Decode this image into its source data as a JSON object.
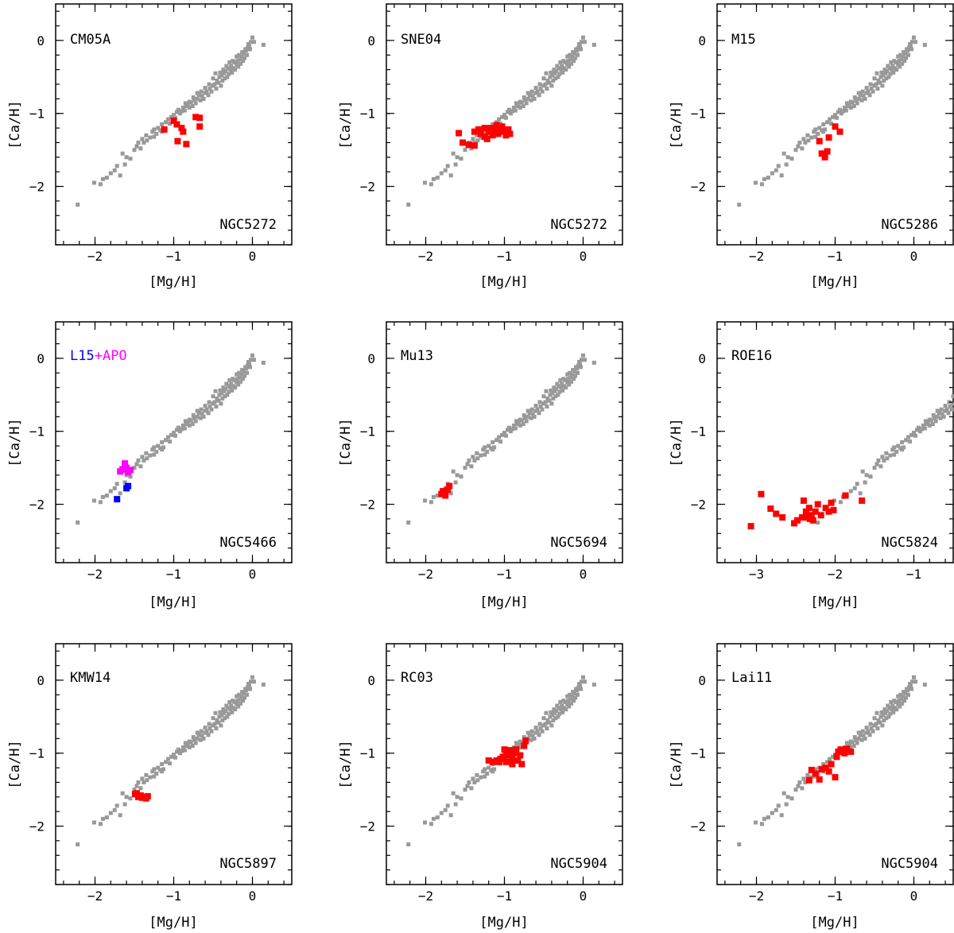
{
  "figure": {
    "background": "#ffffff"
  },
  "colors": {
    "field": "#999999",
    "highlight": "#ff0000",
    "L15": "#0000ff",
    "APO": "#ff00ff",
    "axis": "#000000"
  },
  "chart_data": [
    {
      "type": "scatter",
      "panel_label": "CM05A",
      "cluster": "NGC5272",
      "xlabel": "[Mg/H]",
      "ylabel": "[Ca/H]",
      "xlim": [
        -2.5,
        0.5
      ],
      "ylim": [
        -2.8,
        0.5
      ],
      "xticks": [
        -2,
        -1,
        0
      ],
      "yticks": [
        -2,
        -1,
        0
      ],
      "series": [
        {
          "name": "NGC5272",
          "color": "#ff0000",
          "points": [
            [
              -1.12,
              -1.22
            ],
            [
              -1.0,
              -1.1
            ],
            [
              -0.96,
              -1.15
            ],
            [
              -0.9,
              -1.2
            ],
            [
              -0.88,
              -1.25
            ],
            [
              -0.95,
              -1.38
            ],
            [
              -0.84,
              -1.42
            ],
            [
              -0.72,
              -1.05
            ],
            [
              -0.67,
              -1.06
            ],
            [
              -0.67,
              -1.18
            ]
          ]
        }
      ]
    },
    {
      "type": "scatter",
      "panel_label": "SNE04",
      "cluster": "NGC5272",
      "xlabel": "[Mg/H]",
      "ylabel": "[Ca/H]",
      "xlim": [
        -2.5,
        0.5
      ],
      "ylim": [
        -2.8,
        0.5
      ],
      "xticks": [
        -2,
        -1,
        0
      ],
      "yticks": [
        -2,
        -1,
        0
      ],
      "series": [
        {
          "name": "NGC5272",
          "color": "#ff0000",
          "points": [
            [
              -1.58,
              -1.27
            ],
            [
              -1.53,
              -1.4
            ],
            [
              -1.45,
              -1.43
            ],
            [
              -1.38,
              -1.44
            ],
            [
              -1.38,
              -1.25
            ],
            [
              -1.3,
              -1.28
            ],
            [
              -1.25,
              -1.2
            ],
            [
              -1.22,
              -1.35
            ],
            [
              -1.2,
              -1.25
            ],
            [
              -1.17,
              -1.2
            ],
            [
              -1.15,
              -1.3
            ],
            [
              -1.12,
              -1.22
            ],
            [
              -1.1,
              -1.16
            ],
            [
              -1.08,
              -1.28
            ],
            [
              -1.05,
              -1.22
            ],
            [
              -1.03,
              -1.18
            ],
            [
              -1.0,
              -1.25
            ],
            [
              -0.98,
              -1.3
            ],
            [
              -0.95,
              -1.22
            ],
            [
              -0.93,
              -1.28
            ],
            [
              -1.25,
              -1.32
            ],
            [
              -1.33,
              -1.22
            ]
          ]
        }
      ]
    },
    {
      "type": "scatter",
      "panel_label": "M15",
      "cluster": "NGC5286",
      "xlabel": "[Mg/H]",
      "ylabel": "[Ca/H]",
      "xlim": [
        -2.5,
        0.5
      ],
      "ylim": [
        -2.8,
        0.5
      ],
      "xticks": [
        -2,
        -1,
        0
      ],
      "yticks": [
        -2,
        -1,
        0
      ],
      "series": [
        {
          "name": "NGC5286",
          "color": "#ff0000",
          "points": [
            [
              -1.2,
              -1.38
            ],
            [
              -1.17,
              -1.55
            ],
            [
              -1.13,
              -1.6
            ],
            [
              -1.1,
              -1.52
            ],
            [
              -1.08,
              -1.33
            ],
            [
              -1.0,
              -1.18
            ],
            [
              -0.94,
              -1.25
            ]
          ]
        }
      ]
    },
    {
      "type": "scatter",
      "panel_label_parts": [
        "L15",
        "+APO"
      ],
      "cluster": "NGC5466",
      "xlabel": "[Mg/H]",
      "ylabel": "[Ca/H]",
      "xlim": [
        -2.5,
        0.5
      ],
      "ylim": [
        -2.8,
        0.5
      ],
      "xticks": [
        -2,
        -1,
        0
      ],
      "yticks": [
        -2,
        -1,
        0
      ],
      "series": [
        {
          "name": "L15",
          "color": "#0000ff",
          "points": [
            [
              -1.72,
              -1.93
            ],
            [
              -1.6,
              -1.78
            ],
            [
              -1.58,
              -1.75
            ]
          ]
        },
        {
          "name": "APO",
          "color": "#ff00ff",
          "points": [
            [
              -1.68,
              -1.55
            ],
            [
              -1.62,
              -1.44
            ],
            [
              -1.6,
              -1.5
            ],
            [
              -1.55,
              -1.53
            ],
            [
              -1.65,
              -1.52
            ],
            [
              -1.58,
              -1.56
            ]
          ]
        }
      ]
    },
    {
      "type": "scatter",
      "panel_label": "Mu13",
      "cluster": "NGC5694",
      "xlabel": "[Mg/H]",
      "ylabel": "[Ca/H]",
      "xlim": [
        -2.5,
        0.5
      ],
      "ylim": [
        -2.8,
        0.5
      ],
      "xticks": [
        -2,
        -1,
        0
      ],
      "yticks": [
        -2,
        -1,
        0
      ],
      "series": [
        {
          "name": "NGC5694",
          "color": "#ff0000",
          "points": [
            [
              -1.8,
              -1.86
            ],
            [
              -1.78,
              -1.82
            ],
            [
              -1.75,
              -1.88
            ],
            [
              -1.72,
              -1.8
            ],
            [
              -1.7,
              -1.75
            ],
            [
              -1.76,
              -1.84
            ]
          ]
        }
      ]
    },
    {
      "type": "scatter",
      "panel_label": "ROE16",
      "cluster": "NGC5824",
      "xlabel": "[Mg/H]",
      "ylabel": "[Ca/H]",
      "xlim": [
        -3.5,
        -0.5
      ],
      "ylim": [
        -2.8,
        0.5
      ],
      "xticks": [
        -3,
        -2,
        -1
      ],
      "yticks": [
        -2,
        -1,
        0
      ],
      "series": [
        {
          "name": "NGC5824",
          "color": "#ff0000",
          "points": [
            [
              -3.07,
              -2.3
            ],
            [
              -2.94,
              -1.86
            ],
            [
              -2.82,
              -2.06
            ],
            [
              -2.75,
              -2.13
            ],
            [
              -2.67,
              -2.18
            ],
            [
              -2.52,
              -2.26
            ],
            [
              -2.48,
              -2.22
            ],
            [
              -2.42,
              -2.18
            ],
            [
              -2.4,
              -1.95
            ],
            [
              -2.37,
              -2.1
            ],
            [
              -2.33,
              -2.05
            ],
            [
              -2.3,
              -2.15
            ],
            [
              -2.28,
              -2.22
            ],
            [
              -2.25,
              -2.1
            ],
            [
              -2.22,
              -2.0
            ],
            [
              -2.18,
              -2.15
            ],
            [
              -2.12,
              -2.05
            ],
            [
              -2.08,
              -2.1
            ],
            [
              -2.05,
              -1.98
            ],
            [
              -2.02,
              -2.08
            ],
            [
              -1.87,
              -1.88
            ],
            [
              -1.66,
              -1.95
            ],
            [
              -2.32,
              -2.2
            ],
            [
              -2.35,
              -2.18
            ]
          ]
        }
      ]
    },
    {
      "type": "scatter",
      "panel_label": "KMW14",
      "cluster": "NGC5897",
      "xlabel": "[Mg/H]",
      "ylabel": "[Ca/H]",
      "xlim": [
        -2.5,
        0.5
      ],
      "ylim": [
        -2.8,
        0.5
      ],
      "xticks": [
        -2,
        -1,
        0
      ],
      "yticks": [
        -2,
        -1,
        0
      ],
      "series": [
        {
          "name": "NGC5897",
          "color": "#ff0000",
          "points": [
            [
              -1.49,
              -1.56
            ],
            [
              -1.45,
              -1.6
            ],
            [
              -1.42,
              -1.58
            ],
            [
              -1.38,
              -1.6
            ],
            [
              -1.35,
              -1.62
            ],
            [
              -1.47,
              -1.55
            ],
            [
              -1.4,
              -1.61
            ],
            [
              -1.33,
              -1.59
            ]
          ]
        }
      ]
    },
    {
      "type": "scatter",
      "panel_label": "RC03",
      "cluster": "NGC5904",
      "xlabel": "[Mg/H]",
      "ylabel": "[Ca/H]",
      "xlim": [
        -2.5,
        0.5
      ],
      "ylim": [
        -2.8,
        0.5
      ],
      "xticks": [
        -2,
        -1,
        0
      ],
      "yticks": [
        -2,
        -1,
        0
      ],
      "series": [
        {
          "name": "NGC5904",
          "color": "#ff0000",
          "points": [
            [
              -1.2,
              -1.1
            ],
            [
              -1.15,
              -1.12
            ],
            [
              -1.1,
              -1.1
            ],
            [
              -1.05,
              -1.08
            ],
            [
              -1.02,
              -1.05
            ],
            [
              -1.0,
              -0.95
            ],
            [
              -0.98,
              -1.12
            ],
            [
              -0.95,
              -1.03
            ],
            [
              -0.93,
              -0.96
            ],
            [
              -0.9,
              -1.08
            ],
            [
              -0.88,
              -1.0
            ],
            [
              -0.85,
              -0.95
            ],
            [
              -0.83,
              -1.1
            ],
            [
              -0.8,
              -1.03
            ],
            [
              -0.78,
              -1.15
            ],
            [
              -0.75,
              -0.9
            ],
            [
              -0.73,
              -0.83
            ],
            [
              -0.9,
              -1.15
            ],
            [
              -0.97,
              -0.98
            ],
            [
              -1.07,
              -1.12
            ]
          ]
        }
      ]
    },
    {
      "type": "scatter",
      "panel_label": "Lai11",
      "cluster": "NGC5904",
      "xlabel": "[Mg/H]",
      "ylabel": "[Ca/H]",
      "xlim": [
        -2.5,
        0.5
      ],
      "ylim": [
        -2.8,
        0.5
      ],
      "xticks": [
        -2,
        -1,
        0
      ],
      "yticks": [
        -2,
        -1,
        0
      ],
      "series": [
        {
          "name": "NGC5904",
          "color": "#ff0000",
          "points": [
            [
              -1.33,
              -1.37
            ],
            [
              -1.3,
              -1.23
            ],
            [
              -1.25,
              -1.28
            ],
            [
              -1.2,
              -1.36
            ],
            [
              -1.17,
              -1.22
            ],
            [
              -1.12,
              -1.2
            ],
            [
              -1.08,
              -1.25
            ],
            [
              -1.05,
              -1.15
            ],
            [
              -1.0,
              -1.33
            ],
            [
              -0.98,
              -1.05
            ],
            [
              -0.96,
              -0.98
            ],
            [
              -0.93,
              -0.95
            ],
            [
              -0.88,
              -1.0
            ],
            [
              -0.85,
              -0.94
            ],
            [
              -0.8,
              -0.98
            ],
            [
              -0.9,
              -0.97
            ]
          ]
        }
      ]
    }
  ],
  "field_sample": [
    [
      -2.22,
      -2.25
    ],
    [
      -2.01,
      -1.95
    ],
    [
      -1.93,
      -1.97
    ],
    [
      -1.85,
      -1.88
    ],
    [
      -1.75,
      -1.78
    ],
    [
      -1.68,
      -1.85
    ],
    [
      -1.62,
      -1.7
    ],
    [
      -1.65,
      -1.55
    ],
    [
      -1.55,
      -1.62
    ],
    [
      -1.5,
      -1.5
    ],
    [
      -1.47,
      -1.45
    ],
    [
      -1.42,
      -1.48
    ],
    [
      -1.38,
      -1.4
    ],
    [
      -1.34,
      -1.37
    ],
    [
      -1.3,
      -1.33
    ],
    [
      -1.27,
      -1.25
    ],
    [
      -1.25,
      -1.32
    ],
    [
      -1.22,
      -1.28
    ],
    [
      -1.2,
      -1.2
    ],
    [
      -1.17,
      -1.23
    ],
    [
      -1.15,
      -1.15
    ],
    [
      -1.13,
      -1.22
    ],
    [
      -1.1,
      -1.12
    ],
    [
      -1.07,
      -1.08
    ],
    [
      -1.05,
      -1.14
    ],
    [
      -1.03,
      -1.05
    ],
    [
      -1.0,
      -1.02
    ],
    [
      -0.98,
      -1.06
    ],
    [
      -0.96,
      -0.98
    ],
    [
      -0.94,
      -0.95
    ],
    [
      -0.92,
      -1.0
    ],
    [
      -0.9,
      -0.97
    ],
    [
      -0.88,
      -0.92
    ],
    [
      -0.86,
      -0.96
    ],
    [
      -0.84,
      -0.9
    ],
    [
      -0.82,
      -0.88
    ],
    [
      -0.8,
      -0.92
    ],
    [
      -0.78,
      -0.85
    ],
    [
      -0.76,
      -0.9
    ],
    [
      -0.74,
      -0.82
    ],
    [
      -0.72,
      -0.86
    ],
    [
      -0.7,
      -0.8
    ],
    [
      -0.68,
      -0.75
    ],
    [
      -0.66,
      -0.82
    ],
    [
      -0.64,
      -0.76
    ],
    [
      -0.62,
      -0.8
    ],
    [
      -0.6,
      -0.72
    ],
    [
      -0.58,
      -0.7
    ],
    [
      -0.56,
      -0.75
    ],
    [
      -0.54,
      -0.66
    ],
    [
      -0.52,
      -0.7
    ],
    [
      -0.5,
      -0.62
    ],
    [
      -0.48,
      -0.6
    ],
    [
      -0.46,
      -0.66
    ],
    [
      -0.45,
      -0.55
    ],
    [
      -0.43,
      -0.58
    ],
    [
      -0.42,
      -0.5
    ],
    [
      -0.4,
      -0.62
    ],
    [
      -0.39,
      -0.48
    ],
    [
      -0.38,
      -0.55
    ],
    [
      -0.36,
      -0.45
    ],
    [
      -0.35,
      -0.52
    ],
    [
      -0.34,
      -0.42
    ],
    [
      -0.32,
      -0.5
    ],
    [
      -0.31,
      -0.38
    ],
    [
      -0.3,
      -0.46
    ],
    [
      -0.28,
      -0.4
    ],
    [
      -0.27,
      -0.35
    ],
    [
      -0.26,
      -0.44
    ],
    [
      -0.24,
      -0.38
    ],
    [
      -0.23,
      -0.3
    ],
    [
      -0.22,
      -0.4
    ],
    [
      -0.2,
      -0.33
    ],
    [
      -0.19,
      -0.28
    ],
    [
      -0.18,
      -0.36
    ],
    [
      -0.16,
      -0.26
    ],
    [
      -0.15,
      -0.32
    ],
    [
      -0.14,
      -0.22
    ],
    [
      -0.12,
      -0.28
    ],
    [
      -0.11,
      -0.18
    ],
    [
      -0.1,
      -0.24
    ],
    [
      -0.08,
      -0.14
    ],
    [
      -0.07,
      -0.2
    ],
    [
      -0.06,
      -0.1
    ],
    [
      -0.04,
      -0.08
    ],
    [
      -0.03,
      -0.12
    ],
    [
      -0.02,
      -0.02
    ],
    [
      0.0,
      0.04
    ],
    [
      0.02,
      -0.02
    ],
    [
      0.14,
      -0.06
    ],
    [
      -0.5,
      -0.52
    ],
    [
      -0.47,
      -0.45
    ],
    [
      -0.33,
      -0.35
    ],
    [
      -0.29,
      -0.3
    ],
    [
      -0.25,
      -0.28
    ],
    [
      -0.37,
      -0.4
    ],
    [
      -0.41,
      -0.44
    ],
    [
      -0.2,
      -0.22
    ],
    [
      -0.17,
      -0.2
    ],
    [
      -0.13,
      -0.16
    ],
    [
      -0.09,
      -0.12
    ],
    [
      -0.05,
      -0.05
    ],
    [
      -0.55,
      -0.6
    ],
    [
      -0.6,
      -0.65
    ],
    [
      -0.65,
      -0.7
    ],
    [
      -0.7,
      -0.72
    ],
    [
      -0.75,
      -0.78
    ],
    [
      -0.8,
      -0.84
    ],
    [
      -0.85,
      -0.86
    ],
    [
      -1.15,
      -1.25
    ],
    [
      -1.25,
      -1.22
    ],
    [
      -1.35,
      -1.3
    ],
    [
      -1.4,
      -1.35
    ],
    [
      -1.45,
      -1.4
    ],
    [
      -1.6,
      -1.6
    ],
    [
      -1.72,
      -1.72
    ],
    [
      -1.8,
      -1.82
    ],
    [
      -1.9,
      -1.9
    ]
  ]
}
